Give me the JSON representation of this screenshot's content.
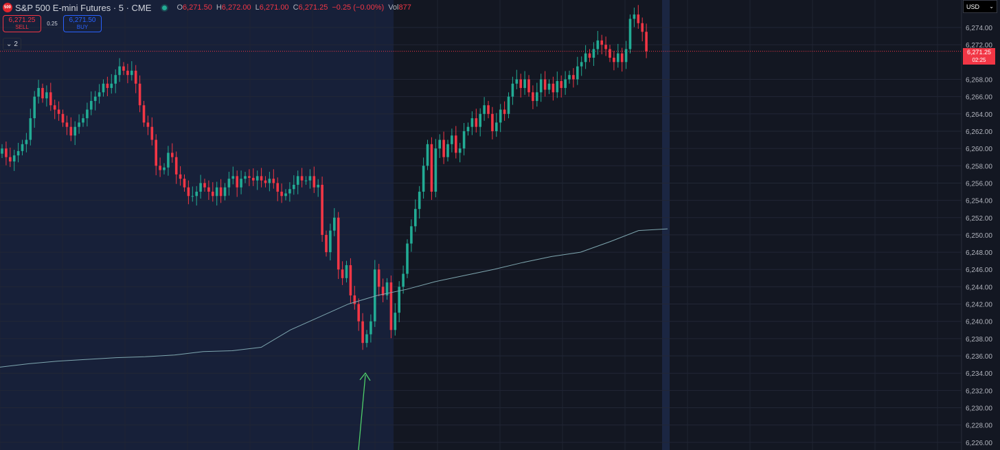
{
  "symbol": {
    "logo_text": "500",
    "title": "S&P 500 E-mini Futures · 5 · CME",
    "open_key": "O",
    "open": "6,271.50",
    "high_key": "H",
    "high": "6,272.00",
    "low_key": "L",
    "low": "6,271.00",
    "close_key": "C",
    "close": "6,271.25",
    "change": "−0.25 (−0.00%)",
    "vol_key": "Vol",
    "volume": "877"
  },
  "trade": {
    "sell_price": "6,271.25",
    "sell_label": "SELL",
    "spread": "0.25",
    "buy_price": "6,271.50",
    "buy_label": "BUY"
  },
  "indicators_toggle": {
    "count": "2"
  },
  "currency": "USD",
  "last_price": {
    "price": "6,271.25",
    "countdown": "02:25"
  },
  "colors": {
    "up": "#22ab94",
    "down": "#f23645",
    "vwap": "#7fa7b0",
    "arrow": "#4fd06a",
    "background": "#131722",
    "session_bg": "#172039"
  },
  "chart_data": {
    "type": "candlestick",
    "y_ticks": [
      6274,
      6272,
      6268,
      6266,
      6264,
      6262,
      6260,
      6258,
      6256,
      6254,
      6252,
      6250,
      6248,
      6246,
      6244,
      6242,
      6240,
      6238,
      6236,
      6234,
      6232,
      6230,
      6228,
      6226
    ],
    "y_tick_labels": [
      "6,274.00",
      "6,272.00",
      "6,268.00",
      "6,266.00",
      "6,264.00",
      "6,262.00",
      "6,260.00",
      "6,258.00",
      "6,256.00",
      "6,254.00",
      "6,252.00",
      "6,250.00",
      "6,248.00",
      "6,246.00",
      "6,244.00",
      "6,242.00",
      "6,240.00",
      "6,238.00",
      "6,236.00",
      "6,234.00",
      "6,232.00",
      "6,230.00",
      "6,228.00",
      "6,226.00"
    ],
    "grid": true,
    "current_price": 6271.25,
    "closes": [
      6260.0,
      6259.0,
      6258.5,
      6259.2,
      6259.7,
      6260.5,
      6261.0,
      6263.5,
      6266.0,
      6267.0,
      6265.8,
      6266.5,
      6265.0,
      6264.5,
      6264.0,
      6263.0,
      6262.5,
      6261.5,
      6262.5,
      6263.0,
      6263.5,
      6264.5,
      6265.5,
      6266.0,
      6266.5,
      6267.5,
      6267.0,
      6267.5,
      6268.5,
      6269.5,
      6269.0,
      6268.5,
      6269.0,
      6267.5,
      6265.0,
      6263.0,
      6262.5,
      6261.0,
      6258.0,
      6257.5,
      6257.8,
      6259.5,
      6259.0,
      6257.0,
      6256.5,
      6255.5,
      6254.5,
      6254.5,
      6255.0,
      6256.0,
      6255.5,
      6255.0,
      6254.5,
      6255.5,
      6254.5,
      6255.5,
      6256.5,
      6256.8,
      6255.5,
      6256.5,
      6256.8,
      6256.6,
      6256.3,
      6256.8,
      6256.3,
      6256.0,
      6256.5,
      6256.0,
      6255.0,
      6254.5,
      6254.8,
      6255.3,
      6255.8,
      6256.8,
      6256.3,
      6256.3,
      6256.8,
      6255.5,
      6255.8,
      6250.0,
      6248.0,
      6250.5,
      6252.0,
      6246.0,
      6245.0,
      6246.5,
      6243.0,
      6242.0,
      6240.0,
      6237.5,
      6238.5,
      6240.0,
      6246.0,
      6244.0,
      6243.0,
      6244.5,
      6239.0,
      6241.0,
      6244.0,
      6245.5,
      6249.0,
      6251.0,
      6253.0,
      6255.0,
      6258.0,
      6260.5,
      6255.0,
      6260.0,
      6261.0,
      6259.0,
      6260.5,
      6261.5,
      6259.5,
      6260.0,
      6262.0,
      6262.5,
      6263.5,
      6262.5,
      6264.0,
      6265.0,
      6264.0,
      6262.0,
      6263.0,
      6264.5,
      6264.0,
      6266.0,
      6267.5,
      6268.0,
      6267.0,
      6268.0,
      6266.5,
      6265.5,
      6266.5,
      6268.0,
      6266.8,
      6267.5,
      6266.5,
      6267.8,
      6267.0,
      6268.0,
      6268.5,
      6268.0,
      6269.5,
      6270.0,
      6271.0,
      6270.5,
      6271.5,
      6272.5,
      6272.0,
      6271.5,
      6270.5,
      6270.0,
      6271.0,
      6270.0,
      6271.5,
      6275.0,
      6275.5,
      6274.5,
      6273.5,
      6271.25
    ],
    "vwap": [
      6234.7,
      6235.1,
      6235.4,
      6235.6,
      6235.8,
      6235.9,
      6236.1,
      6236.5,
      6236.6,
      6237.0,
      6239.0,
      6240.5,
      6242.0,
      6243.0,
      6243.7,
      6244.6,
      6245.3,
      6246.0,
      6246.8,
      6247.5,
      6248.0,
      6249.2,
      6250.5,
      6250.7
    ]
  },
  "annotation": {
    "type": "arrow"
  }
}
